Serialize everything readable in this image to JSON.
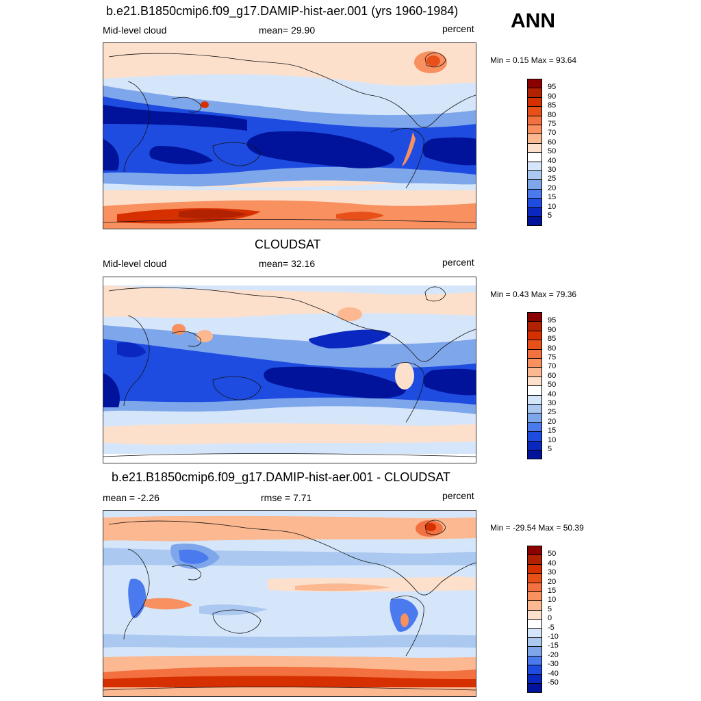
{
  "season": "ANN",
  "panels": [
    {
      "title": "b.e21.B1850cmip6.f09_g17.DAMIP-hist-aer.001 (yrs 1960-1984)",
      "left_label": "Mid-level cloud",
      "center_label": "mean=  29.90",
      "right_label": "percent",
      "minmax": "Min =   0.15 Max =  93.64",
      "colorbar_labels": [
        "95",
        "90",
        "85",
        "80",
        "75",
        "70",
        "60",
        "50",
        "40",
        "30",
        "25",
        "20",
        "15",
        "10",
        "5"
      ],
      "colorbar_colors": [
        "#8b0000",
        "#b22200",
        "#d63000",
        "#e8501a",
        "#f37040",
        "#f89060",
        "#fcb890",
        "#fde0cc",
        "#ffffff",
        "#d6e6fa",
        "#aac8f0",
        "#7ea6ea",
        "#4a7aee",
        "#1f4ce0",
        "#0a28c0",
        "#00139a"
      ]
    },
    {
      "title": "CLOUDSAT",
      "left_label": "Mid-level cloud",
      "center_label": "mean=  32.16",
      "right_label": "percent",
      "minmax": "Min =   0.43 Max =  79.36",
      "colorbar_labels": [
        "95",
        "90",
        "85",
        "80",
        "75",
        "70",
        "60",
        "50",
        "40",
        "30",
        "25",
        "20",
        "15",
        "10",
        "5"
      ],
      "colorbar_colors": [
        "#8b0000",
        "#b22200",
        "#d63000",
        "#e8501a",
        "#f37040",
        "#f89060",
        "#fcb890",
        "#fde0cc",
        "#ffffff",
        "#d6e6fa",
        "#aac8f0",
        "#7ea6ea",
        "#4a7aee",
        "#1f4ce0",
        "#0a28c0",
        "#00139a"
      ]
    },
    {
      "title": "b.e21.B1850cmip6.f09_g17.DAMIP-hist-aer.001 - CLOUDSAT",
      "left_label": "mean =  -2.26",
      "center_label": "rmse =   7.71",
      "right_label": "percent",
      "minmax": "Min = -29.54 Max =  50.39",
      "colorbar_labels": [
        "50",
        "40",
        "30",
        "20",
        "15",
        "10",
        "5",
        "0",
        "-5",
        "-10",
        "-15",
        "-20",
        "-30",
        "-40",
        "-50"
      ],
      "colorbar_colors": [
        "#8b0000",
        "#b22200",
        "#d63000",
        "#e8501a",
        "#f37040",
        "#f89060",
        "#fcb890",
        "#fde0cc",
        "#ffffff",
        "#d6e6fa",
        "#aac8f0",
        "#7ea6ea",
        "#4a7aee",
        "#1f4ce0",
        "#0a28c0",
        "#00139a"
      ]
    }
  ]
}
